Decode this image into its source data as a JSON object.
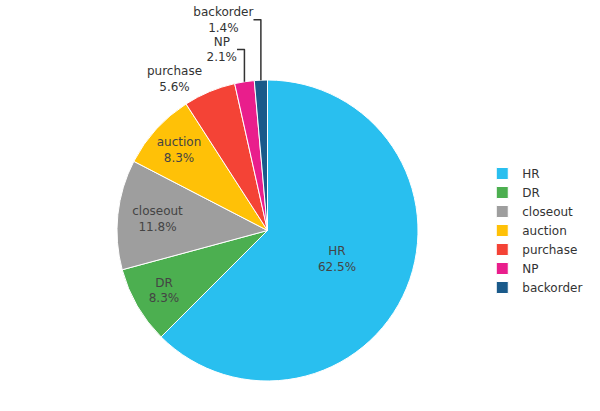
{
  "chart_data": {
    "type": "pie",
    "categories": [
      "HR",
      "DR",
      "closeout",
      "auction",
      "purchase",
      "NP",
      "backorder"
    ],
    "values": [
      62.5,
      8.3,
      11.8,
      8.3,
      5.6,
      2.1,
      1.4
    ],
    "value_labels": [
      "62.5%",
      "8.3%",
      "11.8%",
      "8.3%",
      "5.6%",
      "2.1%",
      "1.4%"
    ],
    "colors": [
      "#29BFEF",
      "#4CAF50",
      "#9E9E9E",
      "#FFC107",
      "#F44336",
      "#E91E8C",
      "#1A5A8A"
    ],
    "data_labels": true,
    "legend": "right"
  }
}
